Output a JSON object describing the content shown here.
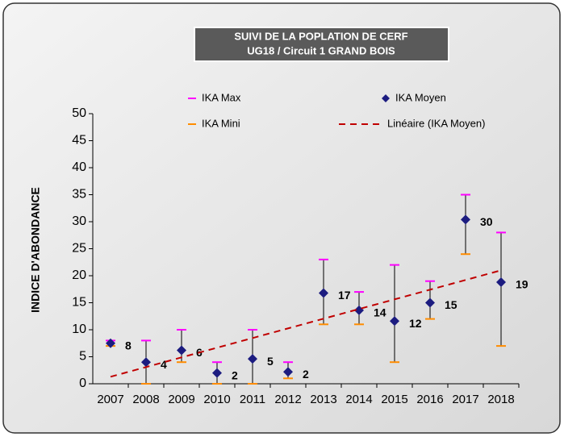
{
  "chart_data": {
    "type": "errorbar",
    "title": [
      "SUIVI DE LA POPLATION DE CERF",
      "UG18 / Circuit 1 GRAND BOIS"
    ],
    "y_label": "INDICE D'ABONDANCE",
    "categories": [
      "2007",
      "2008",
      "2009",
      "2010",
      "2011",
      "2012",
      "2013",
      "2014",
      "2015",
      "2016",
      "2017",
      "2018"
    ],
    "series": [
      {
        "name": "IKA Max",
        "color": "#ff00ff",
        "values": [
          8,
          8,
          10,
          4,
          10,
          4,
          23,
          17,
          22,
          19,
          35,
          28
        ]
      },
      {
        "name": "IKA Mini",
        "color": "#ff8c00",
        "values": [
          7,
          0,
          4,
          0,
          0,
          1,
          11,
          11,
          4,
          12,
          24,
          7
        ]
      },
      {
        "name": "IKA Moyen",
        "color": "#1c1c80",
        "values": [
          7.5,
          4,
          6.2,
          2,
          4.6,
          2.2,
          16.8,
          13.6,
          11.6,
          15,
          30.4,
          18.8
        ],
        "value_labels": [
          "8",
          "4",
          "6",
          "2",
          "5",
          "2",
          "17",
          "14",
          "12",
          "15",
          "30",
          "19"
        ]
      }
    ],
    "trendline": {
      "name": "Linéaire (IKA Moyen)",
      "color": "#c00000",
      "values": [
        1.3,
        21
      ]
    },
    "ylim": [
      0,
      50
    ],
    "yticks": [
      0,
      5,
      10,
      15,
      20,
      25,
      30,
      35,
      40,
      45,
      50
    ]
  }
}
